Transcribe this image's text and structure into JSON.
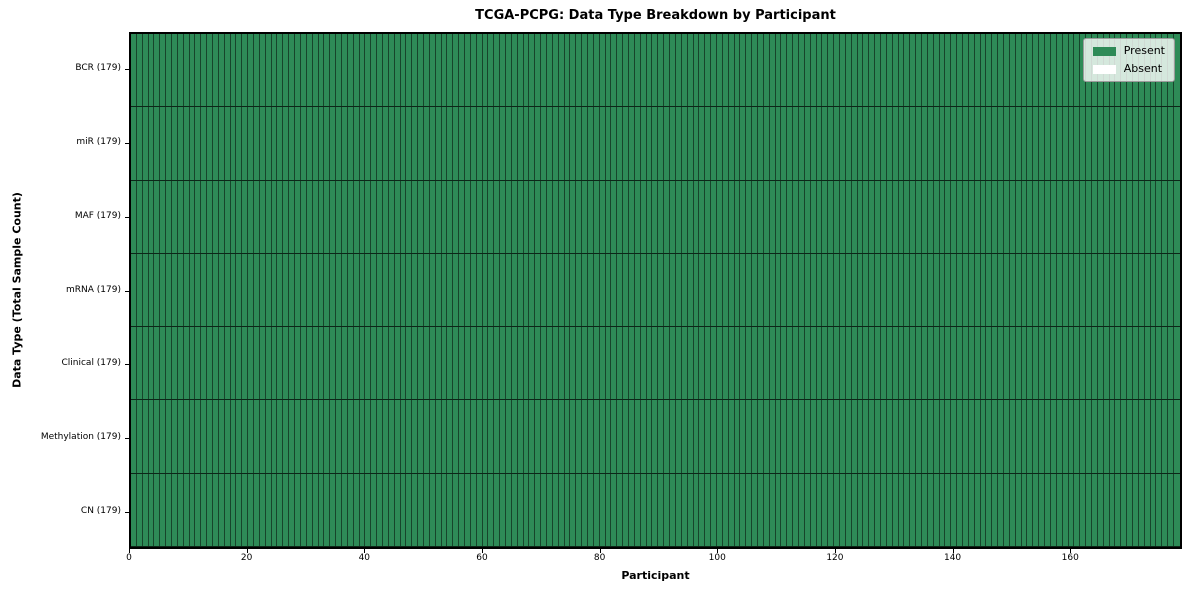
{
  "chart_data": {
    "type": "heatmap",
    "title": "TCGA-PCPG: Data Type Breakdown by Participant",
    "xlabel": "Participant",
    "ylabel": "Data Type (Total Sample Count)",
    "x_ticks": [
      0,
      20,
      40,
      60,
      80,
      100,
      120,
      140,
      160
    ],
    "x_range": [
      0,
      179
    ],
    "n_participants": 179,
    "grid": "cell-edges",
    "rows": [
      {
        "label": "BCR (179)",
        "data_type": "BCR",
        "total": 179,
        "present_count": 179,
        "absent_count": 0,
        "absent_indices": []
      },
      {
        "label": "miR (179)",
        "data_type": "miR",
        "total": 179,
        "present_count": 179,
        "absent_count": 0,
        "absent_indices": []
      },
      {
        "label": "MAF (179)",
        "data_type": "MAF",
        "total": 179,
        "present_count": 179,
        "absent_count": 0,
        "absent_indices": []
      },
      {
        "label": "mRNA (179)",
        "data_type": "mRNA",
        "total": 179,
        "present_count": 179,
        "absent_count": 0,
        "absent_indices": []
      },
      {
        "label": "Clinical (179)",
        "data_type": "Clinical",
        "total": 179,
        "present_count": 179,
        "absent_count": 0,
        "absent_indices": []
      },
      {
        "label": "Methylation (179)",
        "data_type": "Methylation",
        "total": 179,
        "present_count": 179,
        "absent_count": 0,
        "absent_indices": []
      },
      {
        "label": "CN (179)",
        "data_type": "CN",
        "total": 179,
        "present_count": 179,
        "absent_count": 0,
        "absent_indices": []
      }
    ],
    "legend": {
      "position": "upper right",
      "entries": [
        {
          "label": "Present",
          "color": "#2e8b57"
        },
        {
          "label": "Absent",
          "color": "#ffffff"
        }
      ]
    },
    "colors": {
      "present": "#2e8b57",
      "absent": "#ffffff",
      "cell_edge": "rgba(0,0,0,0.5)",
      "frame": "#000000",
      "legend_bg": "rgba(255,255,255,0.8)"
    }
  }
}
